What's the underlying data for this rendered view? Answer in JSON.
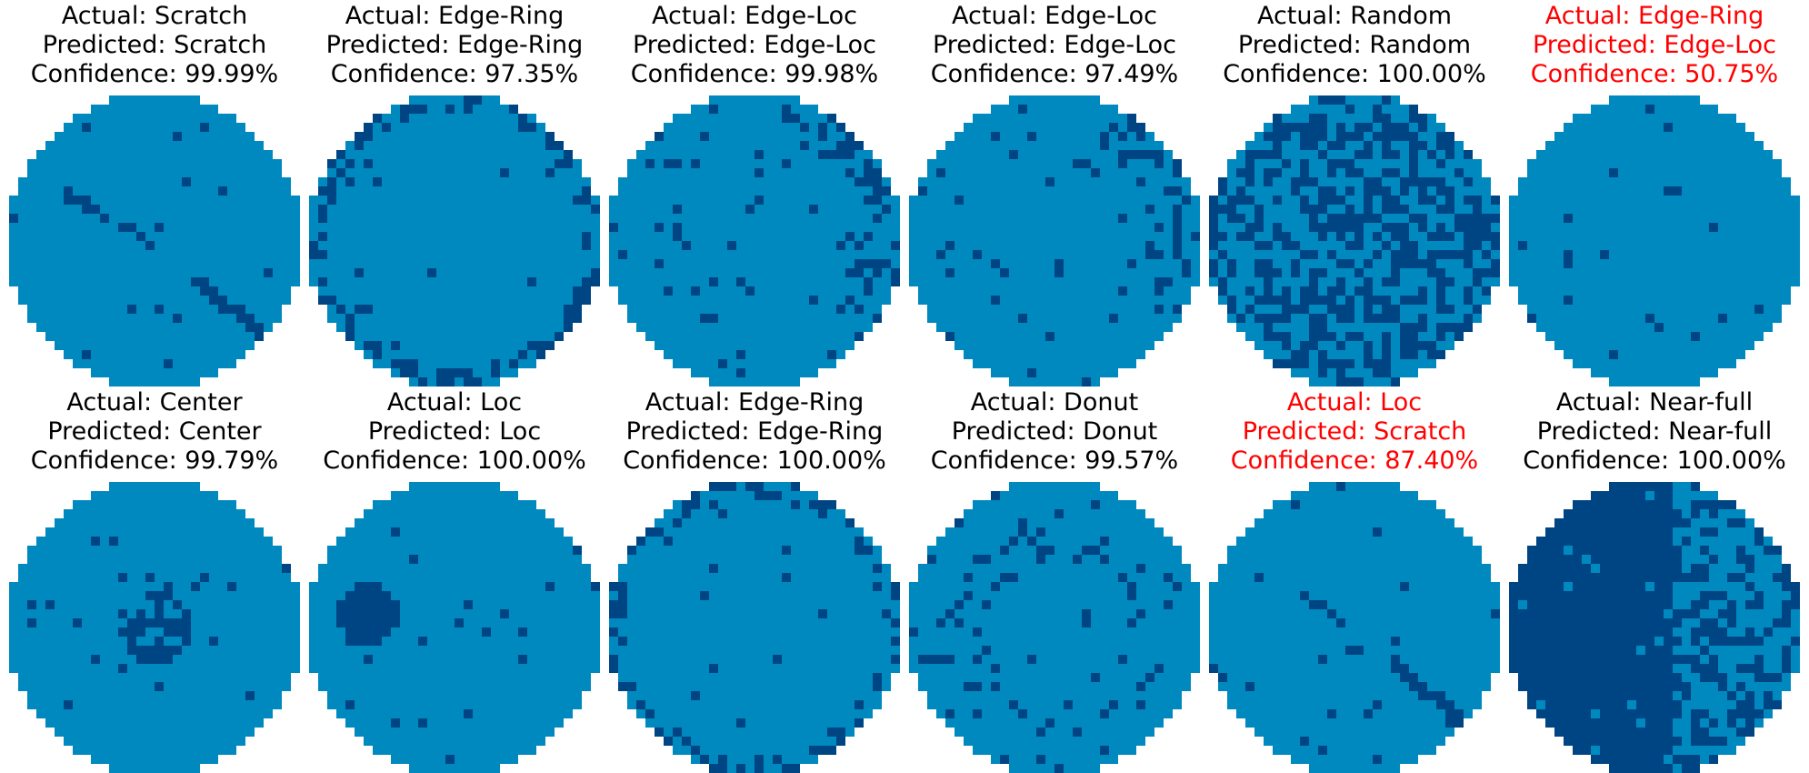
{
  "colors": {
    "background": "#ffffff",
    "wafer": "#0089bf",
    "defect": "#004583",
    "title_correct": "#000000",
    "title_wrong": "#ff0000"
  },
  "chart_data": {
    "type": "heatmap",
    "grid": "2x6",
    "panels": [
      {
        "actual": "Actual: Scratch",
        "predicted": "Predicted: Scratch",
        "confidence": "Confidence: 99.99%",
        "correct": true,
        "pattern": "scratch"
      },
      {
        "actual": "Actual: Edge-Ring",
        "predicted": "Predicted: Edge-Ring",
        "confidence": "Confidence: 97.35%",
        "correct": true,
        "pattern": "edge-ring"
      },
      {
        "actual": "Actual: Edge-Loc",
        "predicted": "Predicted: Edge-Loc",
        "confidence": "Confidence: 99.98%",
        "correct": true,
        "pattern": "edge-loc"
      },
      {
        "actual": "Actual: Edge-Loc",
        "predicted": "Predicted: Edge-Loc",
        "confidence": "Confidence: 97.49%",
        "correct": true,
        "pattern": "edge-loc"
      },
      {
        "actual": "Actual: Random",
        "predicted": "Predicted: Random",
        "confidence": "Confidence: 100.00%",
        "correct": true,
        "pattern": "random"
      },
      {
        "actual": "Actual: Edge-Ring",
        "predicted": "Predicted: Edge-Loc",
        "confidence": "Confidence: 50.75%",
        "correct": false,
        "pattern": "sparse"
      },
      {
        "actual": "Actual: Center",
        "predicted": "Predicted: Center",
        "confidence": "Confidence: 99.79%",
        "correct": true,
        "pattern": "center"
      },
      {
        "actual": "Actual: Loc",
        "predicted": "Predicted: Loc",
        "confidence": "Confidence: 100.00%",
        "correct": true,
        "pattern": "loc"
      },
      {
        "actual": "Actual: Edge-Ring",
        "predicted": "Predicted: Edge-Ring",
        "confidence": "Confidence: 100.00%",
        "correct": true,
        "pattern": "edge-ring"
      },
      {
        "actual": "Actual: Donut",
        "predicted": "Predicted: Donut",
        "confidence": "Confidence: 99.57%",
        "correct": true,
        "pattern": "donut"
      },
      {
        "actual": "Actual: Loc",
        "predicted": "Predicted: Scratch",
        "confidence": "Confidence: 87.40%",
        "correct": false,
        "pattern": "scratch"
      },
      {
        "actual": "Actual: Near-full",
        "predicted": "Predicted: Near-full",
        "confidence": "Confidence: 100.00%",
        "correct": true,
        "pattern": "near-full"
      }
    ]
  }
}
